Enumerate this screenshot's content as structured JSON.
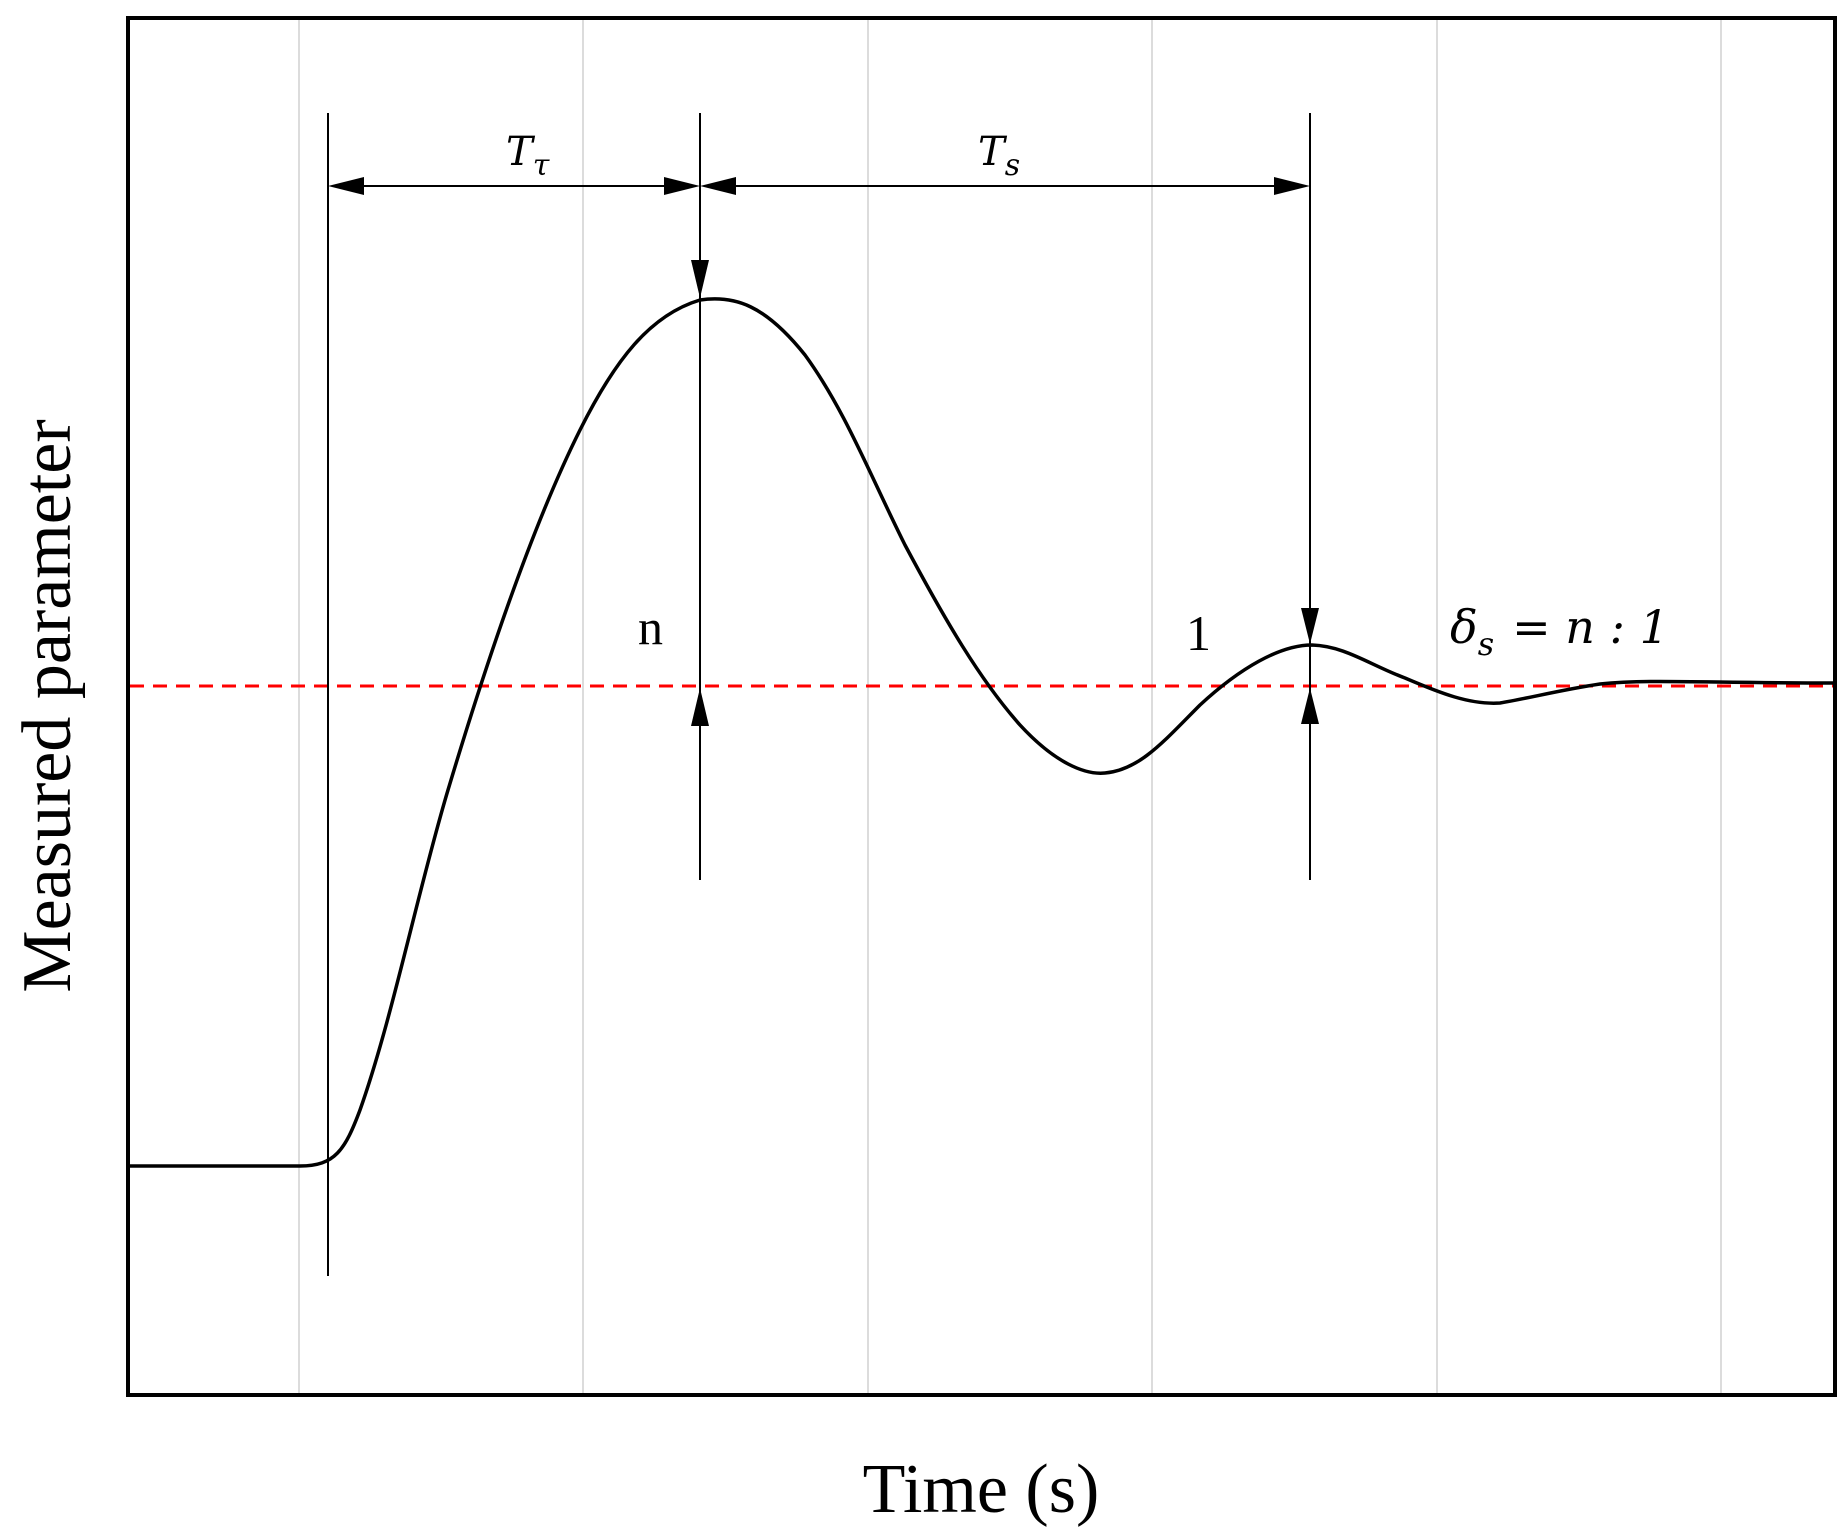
{
  "chart_data": {
    "type": "line",
    "title": "",
    "xlabel": "Time (s)",
    "ylabel": "Measured parameter",
    "xlim": [
      0,
      1.0
    ],
    "ylim": [
      0,
      1.0
    ],
    "grid": "vertical",
    "legend": "none",
    "series": [
      {
        "color": "#000000",
        "points": [
          [
            0.0,
            0.165
          ],
          [
            0.07,
            0.165
          ],
          [
            0.1,
            0.166
          ],
          [
            0.12,
            0.175
          ],
          [
            0.14,
            0.22
          ],
          [
            0.16,
            0.32
          ],
          [
            0.185,
            0.47
          ],
          [
            0.21,
            0.6
          ],
          [
            0.24,
            0.72
          ],
          [
            0.27,
            0.81
          ],
          [
            0.3,
            0.87
          ],
          [
            0.33,
            0.9
          ],
          [
            0.355,
            0.91
          ],
          [
            0.38,
            0.9
          ],
          [
            0.41,
            0.86
          ],
          [
            0.44,
            0.79
          ],
          [
            0.47,
            0.7
          ],
          [
            0.5,
            0.62
          ],
          [
            0.53,
            0.56
          ],
          [
            0.56,
            0.52
          ],
          [
            0.585,
            0.505
          ],
          [
            0.61,
            0.51
          ],
          [
            0.64,
            0.545
          ],
          [
            0.67,
            0.575
          ],
          [
            0.7,
            0.592
          ],
          [
            0.72,
            0.59
          ],
          [
            0.75,
            0.57
          ],
          [
            0.78,
            0.552
          ],
          [
            0.8,
            0.547
          ],
          [
            0.83,
            0.553
          ],
          [
            0.87,
            0.564
          ],
          [
            0.92,
            0.566
          ],
          [
            1.0,
            0.565
          ]
        ]
      },
      {
        "color": "#ff0000",
        "style": "dashed",
        "points": [
          [
            0.0,
            0.565
          ],
          [
            1.0,
            0.565
          ]
        ]
      }
    ],
    "annotations": {
      "period_label": "T",
      "period_sub": "τ",
      "settling_label": "T",
      "settling_sub": "s",
      "first_amp_label": "n",
      "second_amp_label": "1",
      "ratio_delta": "δ",
      "ratio_sub": "s",
      "ratio_text": "= n : 1"
    }
  }
}
